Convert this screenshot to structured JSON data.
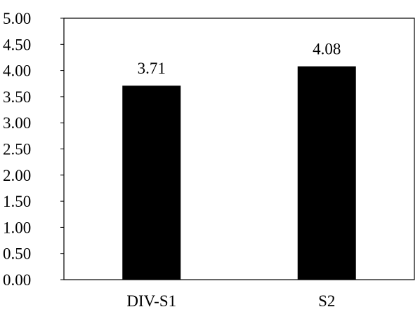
{
  "chart_data": {
    "type": "bar",
    "categories": [
      "DIV-S1",
      "S2"
    ],
    "values": [
      3.71,
      4.08
    ],
    "data_labels": [
      "3.71",
      "4.08"
    ],
    "y_ticks": [
      "0.00",
      "0.50",
      "1.00",
      "1.50",
      "2.00",
      "2.50",
      "3.00",
      "3.50",
      "4.00",
      "4.50",
      "5.00"
    ],
    "ylim": [
      0,
      5
    ],
    "grid": false,
    "legend": "none",
    "bar_color": "#000000"
  }
}
